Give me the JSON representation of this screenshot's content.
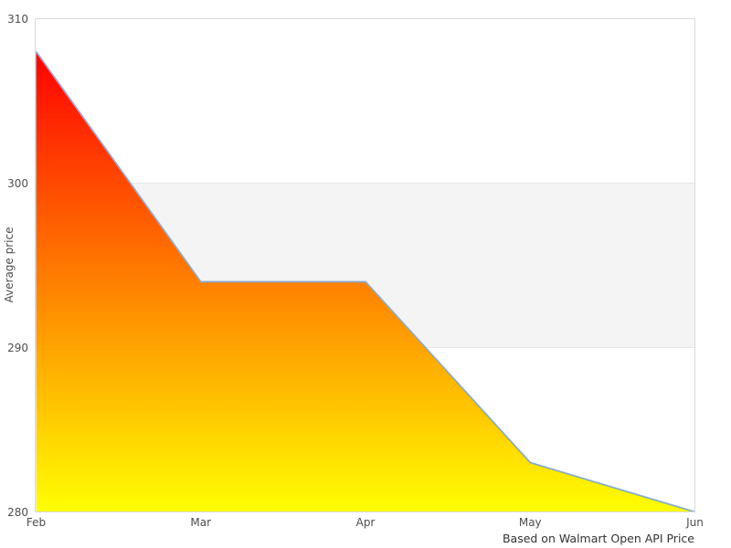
{
  "chart_data": {
    "type": "area",
    "title": "",
    "categories": [
      "Feb",
      "Mar",
      "Apr",
      "May",
      "Jun"
    ],
    "values": [
      308,
      294,
      294,
      283,
      280
    ],
    "series_name": "Average price",
    "xlabel": "",
    "ylabel": "Average price",
    "ylim": [
      280,
      310
    ],
    "yticks": [
      280,
      290,
      300,
      310
    ],
    "highlight_band": {
      "from": 290,
      "to": 300
    },
    "caption": "Based on Walmart Open API Price",
    "legend_position": "none",
    "grid": "highlight-band-only",
    "colors": {
      "fill_gradient_top": "#ff0000",
      "fill_gradient_bottom": "#ffff00",
      "line": "#85acd6",
      "band_fill": "#f4f4f4",
      "band_edge": "#e7e7e7",
      "plot_border": "#d8d8d8",
      "tick_text": "#4d4d4d",
      "caption_text": "#333333",
      "background": "#ffffff"
    }
  }
}
